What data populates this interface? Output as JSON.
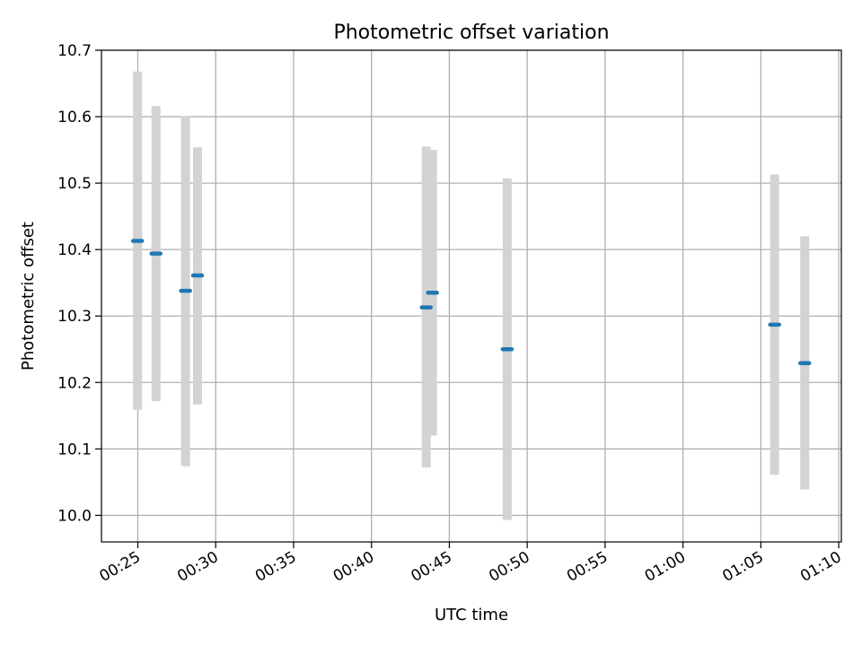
{
  "chart_data": {
    "type": "scatter",
    "title": "Photometric offset variation",
    "xlabel": "UTC time",
    "ylabel": "Photometric offset",
    "x_unit": "minutes",
    "xlim": [
      "00:22:40",
      "01:10:10"
    ],
    "ylim": [
      9.96,
      10.7
    ],
    "grid": true,
    "x_ticks": [
      "00:25",
      "00:30",
      "00:35",
      "00:40",
      "00:45",
      "00:50",
      "00:55",
      "01:00",
      "01:05",
      "01:10"
    ],
    "y_ticks": [
      "10.0",
      "10.1",
      "10.2",
      "10.3",
      "10.4",
      "10.5",
      "10.6",
      "10.7"
    ],
    "colors": {
      "marker": "#1f77b4",
      "errorbar": "#d3d3d3",
      "grid": "#b0b0b0"
    },
    "points": [
      {
        "x": "00:24:59",
        "y": 10.413,
        "ylow": 10.159,
        "yhigh": 10.668
      },
      {
        "x": "00:26:10",
        "y": 10.394,
        "ylow": 10.172,
        "yhigh": 10.616
      },
      {
        "x": "00:28:04",
        "y": 10.338,
        "ylow": 10.074,
        "yhigh": 10.601
      },
      {
        "x": "00:28:50",
        "y": 10.361,
        "ylow": 10.167,
        "yhigh": 10.554
      },
      {
        "x": "00:43:31",
        "y": 10.313,
        "ylow": 10.072,
        "yhigh": 10.555
      },
      {
        "x": "00:43:55",
        "y": 10.335,
        "ylow": 10.12,
        "yhigh": 10.55
      },
      {
        "x": "00:48:43",
        "y": 10.25,
        "ylow": 9.993,
        "yhigh": 10.507
      },
      {
        "x": "01:05:53",
        "y": 10.287,
        "ylow": 10.061,
        "yhigh": 10.513
      },
      {
        "x": "01:07:49",
        "y": 10.229,
        "ylow": 10.039,
        "yhigh": 10.42
      }
    ]
  }
}
